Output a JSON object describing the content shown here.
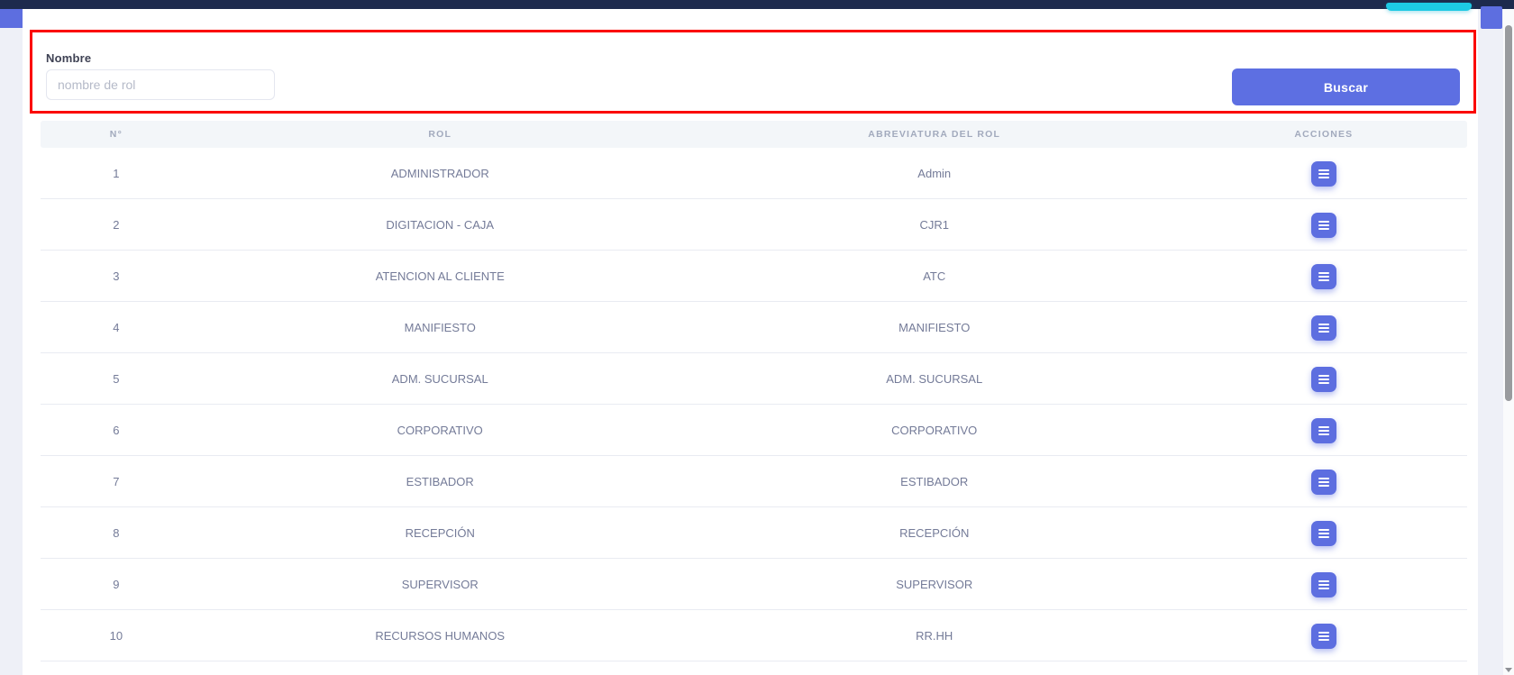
{
  "colors": {
    "navbar": "#1d2a4d",
    "accent": "#5d6ee0",
    "cyan_button": "#1dc9e4",
    "highlight_border": "#fb0600",
    "table_header_bg": "#f3f6f9"
  },
  "search": {
    "label": "Nombre",
    "placeholder": "nombre de rol",
    "button_label": "Buscar"
  },
  "table": {
    "headers": [
      "N°",
      "ROL",
      "ABREVIATURA DEL ROL",
      "ACCIONES"
    ],
    "action_icon": "menu-icon",
    "rows": [
      {
        "n": "1",
        "rol": "ADMINISTRADOR",
        "abreviatura": "Admin"
      },
      {
        "n": "2",
        "rol": "DIGITACION - CAJA",
        "abreviatura": "CJR1"
      },
      {
        "n": "3",
        "rol": "ATENCION AL CLIENTE",
        "abreviatura": "ATC"
      },
      {
        "n": "4",
        "rol": "MANIFIESTO",
        "abreviatura": "MANIFIESTO"
      },
      {
        "n": "5",
        "rol": "ADM. SUCURSAL",
        "abreviatura": "ADM. SUCURSAL"
      },
      {
        "n": "6",
        "rol": "CORPORATIVO",
        "abreviatura": "CORPORATIVO"
      },
      {
        "n": "7",
        "rol": "ESTIBADOR",
        "abreviatura": "ESTIBADOR"
      },
      {
        "n": "8",
        "rol": "RECEPCIÓN",
        "abreviatura": "RECEPCIÓN"
      },
      {
        "n": "9",
        "rol": "SUPERVISOR",
        "abreviatura": "SUPERVISOR"
      },
      {
        "n": "10",
        "rol": "RECURSOS HUMANOS",
        "abreviatura": "RR.HH"
      }
    ]
  }
}
